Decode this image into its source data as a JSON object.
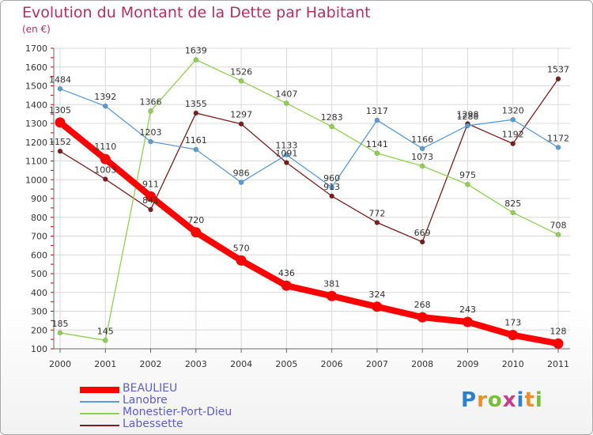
{
  "title": "Evolution du Montant de la Dette par Habitant",
  "subtitle": "(en €)",
  "logo": "Proxiti",
  "chart_data": {
    "type": "line",
    "title": "Evolution du Montant de la Dette par Habitant",
    "subtitle": "(en €)",
    "xlabel": "",
    "ylabel": "",
    "x": [
      2000,
      2001,
      2002,
      2003,
      2004,
      2005,
      2006,
      2007,
      2008,
      2009,
      2010,
      2011
    ],
    "ylim": [
      100,
      1700
    ],
    "yticks": [
      100,
      200,
      300,
      400,
      500,
      600,
      700,
      800,
      900,
      1000,
      1100,
      1200,
      1300,
      1400,
      1500,
      1600,
      1700
    ],
    "grid": true,
    "legend_position": "bottom-left",
    "series": [
      {
        "name": "BEAULIEU",
        "color": "#ff0000",
        "values": [
          1305,
          1110,
          911,
          720,
          570,
          436,
          381,
          324,
          268,
          243,
          173,
          128
        ]
      },
      {
        "name": "Lanobre",
        "color": "#5b9bd5",
        "values": [
          1484,
          1392,
          1203,
          1161,
          986,
          1133,
          960,
          1317,
          1166,
          1288,
          1320,
          1172
        ]
      },
      {
        "name": "Monestier-Port-Dieu",
        "color": "#8fd14f",
        "values": [
          185,
          145,
          1366,
          1639,
          1526,
          1407,
          1283,
          1141,
          1073,
          975,
          825,
          708
        ]
      },
      {
        "name": "Labessette",
        "color": "#7b1e1e",
        "values": [
          1152,
          1003,
          841,
          1355,
          1297,
          1091,
          913,
          772,
          669,
          1298,
          1192,
          1537
        ]
      }
    ]
  }
}
